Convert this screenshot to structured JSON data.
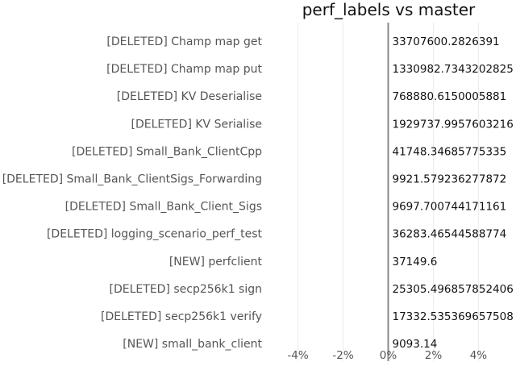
{
  "chart_data": {
    "type": "bar",
    "orientation": "horizontal",
    "title": "perf_labels vs master",
    "categories": [
      "[DELETED] Champ map get",
      "[DELETED] Champ map put",
      "[DELETED] KV Deserialise",
      "[DELETED] KV Serialise",
      "[DELETED] Small_Bank_ClientCpp",
      "[DELETED] Small_Bank_ClientSigs_Forwarding",
      "[DELETED] Small_Bank_Client_Sigs",
      "[DELETED] logging_scenario_perf_test",
      "[NEW] perfclient",
      "[DELETED] secp256k1 sign",
      "[DELETED] secp256k1 verify",
      "[NEW] small_bank_client"
    ],
    "values": [
      0,
      0,
      0,
      0,
      0,
      0,
      0,
      0,
      0,
      0,
      0,
      0
    ],
    "value_labels": [
      "33707600.2826391",
      "1330982.7343202825",
      "768880.6150005881",
      "1929737.9957603216",
      "41748.34685775335",
      "9921.579236277872",
      "9697.700744171161",
      "36283.46544588774",
      "37149.6",
      "25305.496857852406",
      "17332.535369657508",
      "9093.14"
    ],
    "x_ticks": [
      -4,
      -2,
      0,
      2,
      4
    ],
    "x_tick_labels": [
      "-4%",
      "-2%",
      "0%",
      "2%",
      "4%"
    ],
    "xlim": [
      -5.2,
      5.2
    ],
    "grid": true,
    "colors": {
      "zero_line": "#888888",
      "grid": "#ebebeb",
      "category_text": "#555555",
      "value_text": "#111111"
    }
  }
}
